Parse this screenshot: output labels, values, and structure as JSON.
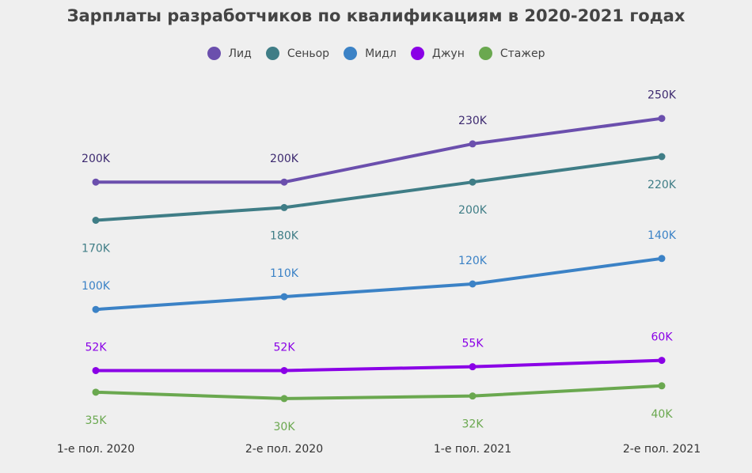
{
  "chart_data": {
    "type": "line",
    "title": "Зарплаты разработчиков по квалификациям в 2020-2021 годах",
    "categories": [
      "1-е пол. 2020",
      "2-е пол. 2020",
      "1-е пол. 2021",
      "2-е пол. 2021"
    ],
    "ylim": [
      20,
      270
    ],
    "grid": false,
    "legend_position": "top-center",
    "series": [
      {
        "name": "Лид",
        "color": "#6b4fad",
        "label_color": "#3d2a70",
        "values": [
          200,
          200,
          230,
          250
        ],
        "labels": [
          "200K",
          "200K",
          "230K",
          "250K"
        ],
        "label_pos": [
          "above",
          "above",
          "above",
          "above"
        ]
      },
      {
        "name": "Сеньор",
        "color": "#3f7d86",
        "label_color": "#3f7d86",
        "values": [
          170,
          180,
          200,
          220
        ],
        "labels": [
          "170K",
          "180K",
          "200K",
          "220K"
        ],
        "label_pos": [
          "below",
          "below",
          "below",
          "below"
        ]
      },
      {
        "name": "Мидл",
        "color": "#3b82c6",
        "label_color": "#3b82c6",
        "values": [
          100,
          110,
          120,
          140
        ],
        "labels": [
          "100K",
          "110K",
          "120K",
          "140K"
        ],
        "label_pos": [
          "above",
          "above",
          "above",
          "above"
        ]
      },
      {
        "name": "Джун",
        "color": "#8a00e6",
        "label_color": "#8a00e6",
        "values": [
          52,
          52,
          55,
          60
        ],
        "labels": [
          "52K",
          "52K",
          "55K",
          "60K"
        ],
        "label_pos": [
          "above",
          "above",
          "above",
          "above"
        ]
      },
      {
        "name": "Стажер",
        "color": "#6aa84f",
        "label_color": "#6aa84f",
        "values": [
          35,
          30,
          32,
          40
        ],
        "labels": [
          "35K",
          "30K",
          "32K",
          "40K"
        ],
        "label_pos": [
          "below",
          "below",
          "below",
          "below"
        ]
      }
    ]
  }
}
